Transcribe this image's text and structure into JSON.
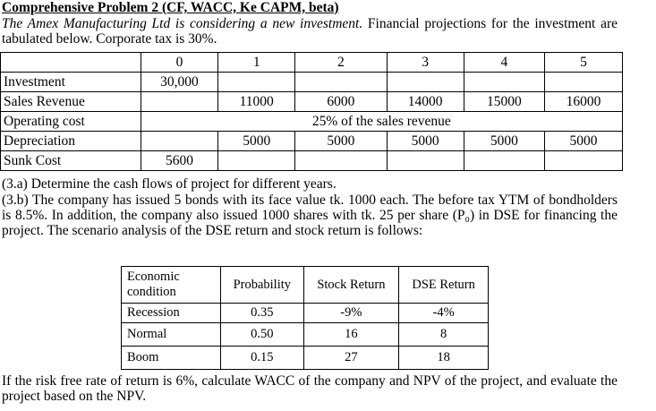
{
  "title": "Comprehensive Problem 2 (CF, WACC, Ke CAPM, beta)",
  "intro_italic": "The Amex Manufacturing Ltd is considering a new investment.",
  "intro_rest": "Financial projections for the investment are tabulated below. Corporate tax is 30%.",
  "projection_table": {
    "years": [
      "0",
      "1",
      "2",
      "3",
      "4",
      "5"
    ],
    "rows": [
      {
        "label": "Investment",
        "cells": [
          "30,000",
          null,
          null,
          null,
          null,
          null
        ]
      },
      {
        "label": "Sales Revenue",
        "cells": [
          null,
          "11000",
          "6000",
          "14000",
          "15000",
          "16000"
        ]
      },
      {
        "label": "Operating cost",
        "span_text": "25% of the sales revenue"
      },
      {
        "label": "Depreciation",
        "cells": [
          null,
          "5000",
          "5000",
          "5000",
          "5000",
          "5000"
        ]
      },
      {
        "label": "Sunk Cost",
        "cells": [
          "5600",
          null,
          null,
          null,
          null,
          null
        ]
      }
    ]
  },
  "question_a": "(3.a) Determine the cash flows of project for different years.",
  "question_b": "(3.b) The company has issued 5 bonds with its face value tk. 1000 each. The before tax YTM of bondholders is 8.5%. In addition, the company also issued 1000 shares with tk. 25 per share (P₀) in DSE for financing the project. The scenario analysis of the DSE return and stock return is follows:",
  "scenario_table": {
    "header": [
      "Economic condition",
      "Probability",
      "Stock Return",
      "DSE Return"
    ],
    "rows": [
      [
        "Recession",
        "0.35",
        "-9%",
        "-4%"
      ],
      [
        "Normal",
        "0.50",
        "16",
        "8"
      ],
      [
        "Boom",
        "0.15",
        "27",
        "18"
      ]
    ]
  },
  "closing": "If the risk free rate of return is 6%, calculate WACC of the company and NPV of the project, and evaluate the project based on the NPV."
}
